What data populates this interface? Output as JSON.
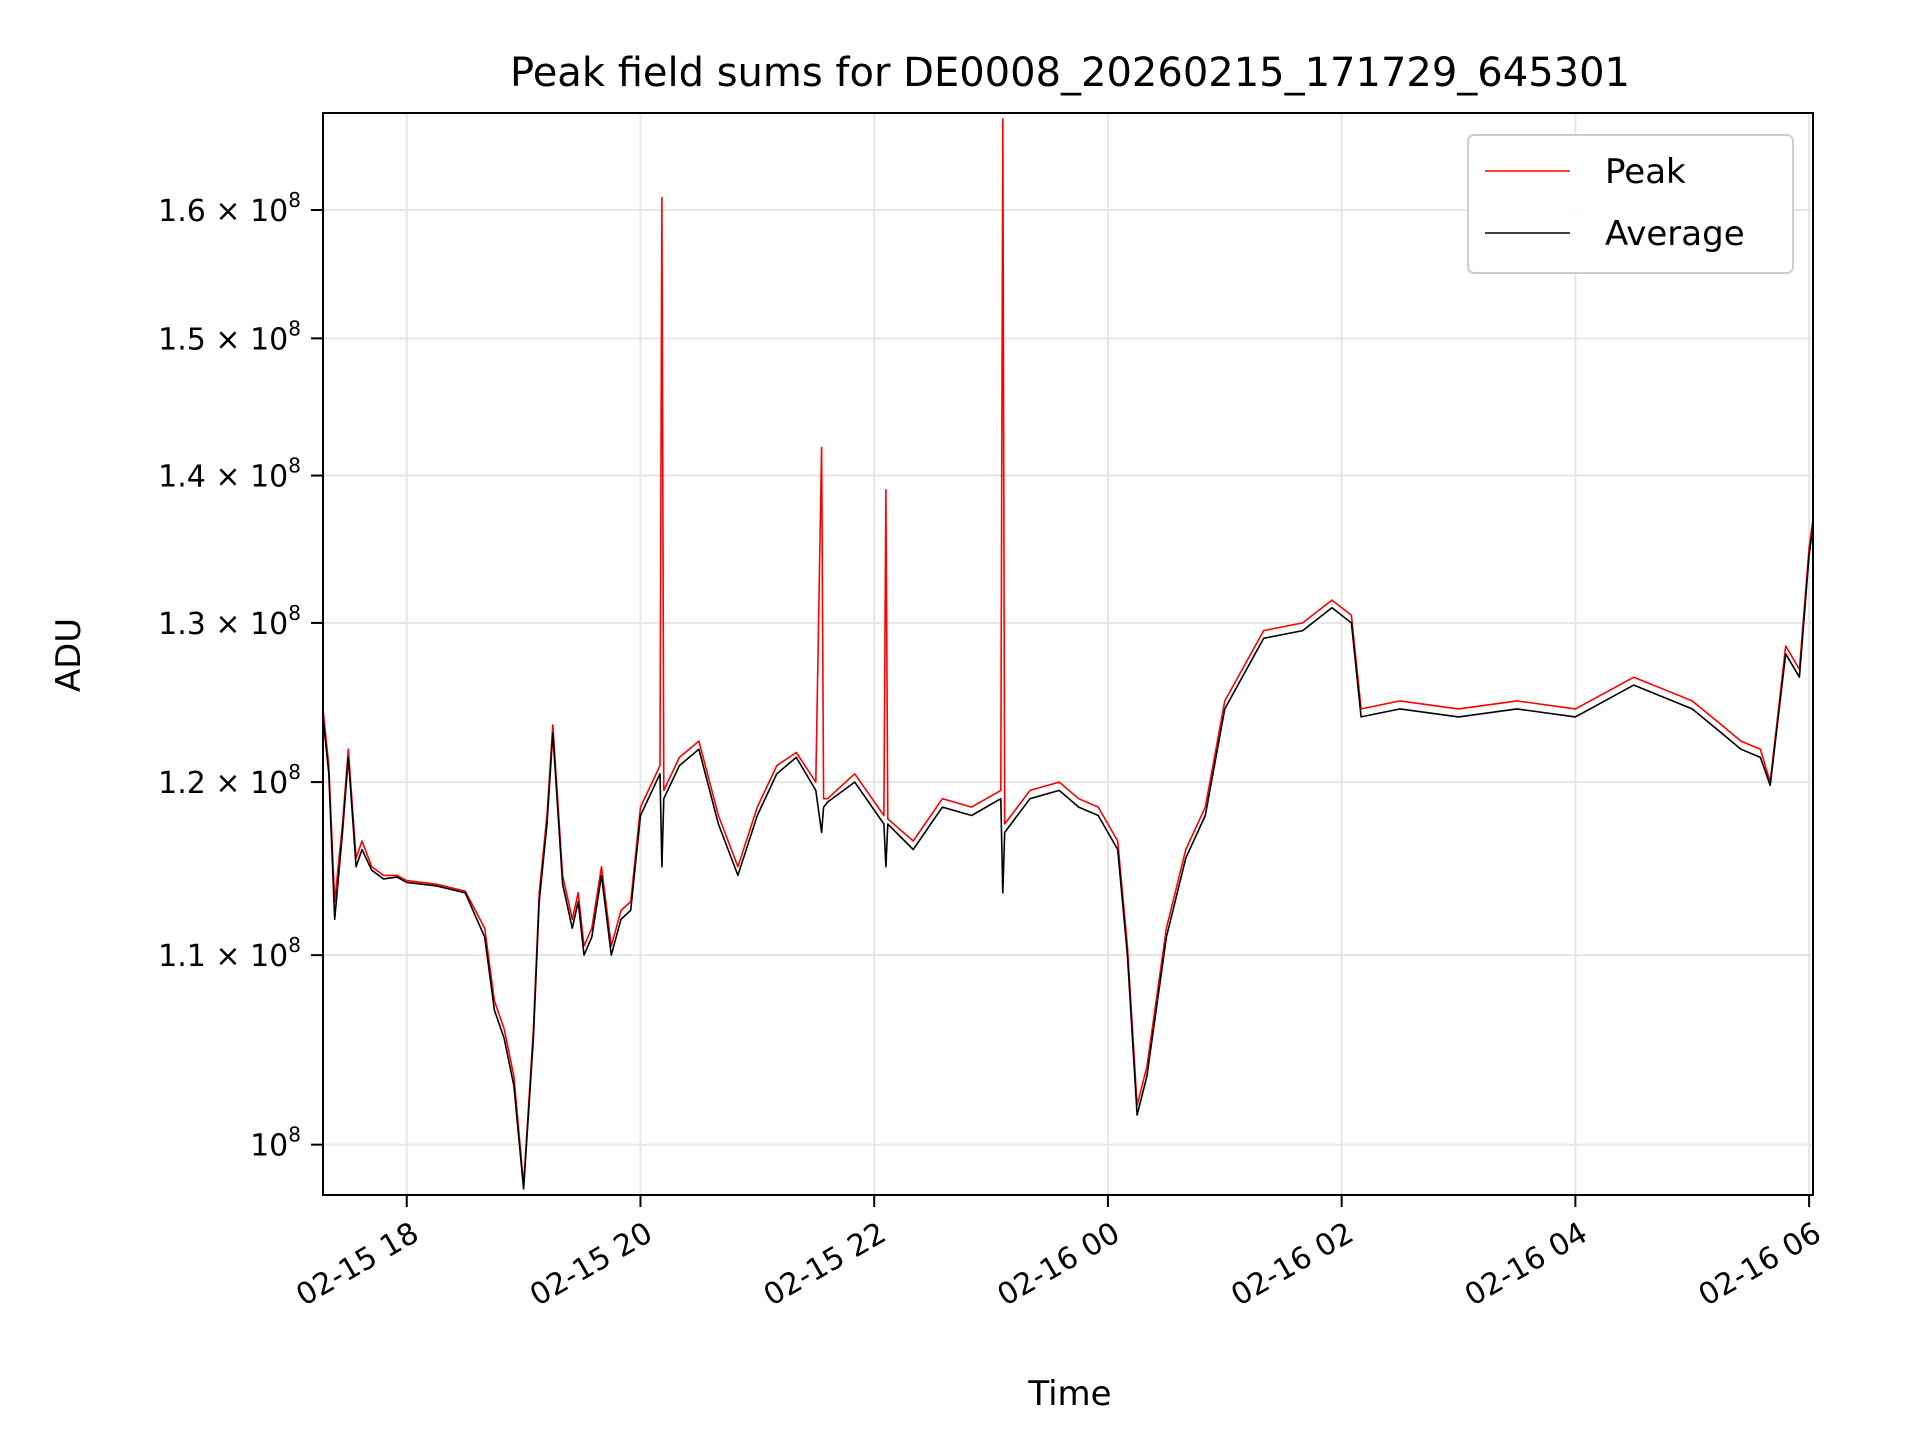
{
  "chart_data": {
    "type": "line",
    "title": "Peak field sums for DE0008_20260215_171729_645301",
    "xlabel": "Time",
    "ylabel": "ADU",
    "xlim": [
      "2026-02-15 17:17",
      "2026-02-16 06:02"
    ],
    "ylim": [
      97500000,
      168000000
    ],
    "yscale": "log",
    "grid": true,
    "legend_position": "top-right",
    "x_ticks": [
      {
        "value": "2026-02-15 18:00",
        "label": "02-15 18"
      },
      {
        "value": "2026-02-15 20:00",
        "label": "02-15 20"
      },
      {
        "value": "2026-02-15 22:00",
        "label": "02-15 22"
      },
      {
        "value": "2026-02-16 00:00",
        "label": "02-16 00"
      },
      {
        "value": "2026-02-16 02:00",
        "label": "02-16 02"
      },
      {
        "value": "2026-02-16 04:00",
        "label": "02-16 04"
      },
      {
        "value": "2026-02-16 06:00",
        "label": "02-16 06"
      }
    ],
    "y_ticks": [
      {
        "value": 100000000,
        "label_base": "10",
        "label_mantissa": "",
        "label_exp": "8"
      },
      {
        "value": 110000000,
        "label_base": "10",
        "label_mantissa": "1.1 × ",
        "label_exp": "8"
      },
      {
        "value": 120000000,
        "label_base": "10",
        "label_mantissa": "1.2 × ",
        "label_exp": "8"
      },
      {
        "value": 130000000,
        "label_base": "10",
        "label_mantissa": "1.3 × ",
        "label_exp": "8"
      },
      {
        "value": 140000000,
        "label_base": "10",
        "label_mantissa": "1.4 × ",
        "label_exp": "8"
      },
      {
        "value": 150000000,
        "label_base": "10",
        "label_mantissa": "1.5 × ",
        "label_exp": "8"
      },
      {
        "value": 160000000,
        "label_base": "10",
        "label_mantissa": "1.6 × ",
        "label_exp": "8"
      }
    ],
    "series": [
      {
        "name": "Peak",
        "color": "#ff0000",
        "x": [
          "2026-02-15 17:17",
          "2026-02-15 17:20",
          "2026-02-15 17:23",
          "2026-02-15 17:27",
          "2026-02-15 17:30",
          "2026-02-15 17:34",
          "2026-02-15 17:37",
          "2026-02-15 17:42",
          "2026-02-15 17:48",
          "2026-02-15 17:55",
          "2026-02-15 18:00",
          "2026-02-15 18:15",
          "2026-02-15 18:30",
          "2026-02-15 18:40",
          "2026-02-15 18:45",
          "2026-02-15 18:50",
          "2026-02-15 18:55",
          "2026-02-15 19:00",
          "2026-02-15 19:05",
          "2026-02-15 19:08",
          "2026-02-15 19:12",
          "2026-02-15 19:15",
          "2026-02-15 19:20",
          "2026-02-15 19:25",
          "2026-02-15 19:28",
          "2026-02-15 19:31",
          "2026-02-15 19:35",
          "2026-02-15 19:40",
          "2026-02-15 19:45",
          "2026-02-15 19:50",
          "2026-02-15 19:55",
          "2026-02-15 20:00",
          "2026-02-15 20:10",
          "2026-02-15 20:11",
          "2026-02-15 20:12",
          "2026-02-15 20:20",
          "2026-02-15 20:30",
          "2026-02-15 20:40",
          "2026-02-15 20:50",
          "2026-02-15 21:00",
          "2026-02-15 21:10",
          "2026-02-15 21:20",
          "2026-02-15 21:30",
          "2026-02-15 21:33",
          "2026-02-15 21:34",
          "2026-02-15 21:36",
          "2026-02-15 21:50",
          "2026-02-15 22:05",
          "2026-02-15 22:06",
          "2026-02-15 22:07",
          "2026-02-15 22:20",
          "2026-02-15 22:35",
          "2026-02-15 22:50",
          "2026-02-15 23:05",
          "2026-02-15 23:06",
          "2026-02-15 23:07",
          "2026-02-15 23:20",
          "2026-02-15 23:35",
          "2026-02-15 23:45",
          "2026-02-15 23:55",
          "2026-02-16 00:05",
          "2026-02-16 00:10",
          "2026-02-16 00:15",
          "2026-02-16 00:20",
          "2026-02-16 00:30",
          "2026-02-16 00:40",
          "2026-02-16 00:50",
          "2026-02-16 01:00",
          "2026-02-16 01:20",
          "2026-02-16 01:40",
          "2026-02-16 01:55",
          "2026-02-16 02:05",
          "2026-02-16 02:10",
          "2026-02-16 02:30",
          "2026-02-16 03:00",
          "2026-02-16 03:30",
          "2026-02-16 04:00",
          "2026-02-16 04:30",
          "2026-02-16 05:00",
          "2026-02-16 05:15",
          "2026-02-16 05:25",
          "2026-02-16 05:35",
          "2026-02-16 05:40",
          "2026-02-16 05:48",
          "2026-02-16 05:55",
          "2026-02-16 06:00",
          "2026-02-16 06:02"
        ],
        "values": [
          124500000,
          121000000,
          113000000,
          117500000,
          122000000,
          115500000,
          116500000,
          115000000,
          114500000,
          114500000,
          114200000,
          114000000,
          113600000,
          111500000,
          107500000,
          106000000,
          103500000,
          98000000,
          106000000,
          113500000,
          118000000,
          123500000,
          114500000,
          112000000,
          113500000,
          110500000,
          111500000,
          115000000,
          110500000,
          112500000,
          113000000,
          118500000,
          121000000,
          161000000,
          119500000,
          121500000,
          122500000,
          118000000,
          115000000,
          118500000,
          121000000,
          121800000,
          120000000,
          142000000,
          119000000,
          119000000,
          120500000,
          118000000,
          139000000,
          117800000,
          116500000,
          119000000,
          118500000,
          119500000,
          167500000,
          117500000,
          119500000,
          120000000,
          119000000,
          118500000,
          116500000,
          110500000,
          102000000,
          104000000,
          111500000,
          116000000,
          118500000,
          125000000,
          129500000,
          130000000,
          131500000,
          130500000,
          124500000,
          125000000,
          124500000,
          125000000,
          124500000,
          126500000,
          125000000,
          123500000,
          122500000,
          122000000,
          120000000,
          128500000,
          127000000,
          135000000,
          137000000
        ]
      },
      {
        "name": "Average",
        "color": "#000000",
        "x": [
          "2026-02-15 17:17",
          "2026-02-15 17:20",
          "2026-02-15 17:23",
          "2026-02-15 17:27",
          "2026-02-15 17:30",
          "2026-02-15 17:34",
          "2026-02-15 17:37",
          "2026-02-15 17:42",
          "2026-02-15 17:48",
          "2026-02-15 17:55",
          "2026-02-15 18:00",
          "2026-02-15 18:15",
          "2026-02-15 18:30",
          "2026-02-15 18:40",
          "2026-02-15 18:45",
          "2026-02-15 18:50",
          "2026-02-15 18:55",
          "2026-02-15 19:00",
          "2026-02-15 19:05",
          "2026-02-15 19:08",
          "2026-02-15 19:12",
          "2026-02-15 19:15",
          "2026-02-15 19:20",
          "2026-02-15 19:25",
          "2026-02-15 19:28",
          "2026-02-15 19:31",
          "2026-02-15 19:35",
          "2026-02-15 19:40",
          "2026-02-15 19:45",
          "2026-02-15 19:50",
          "2026-02-15 19:55",
          "2026-02-15 20:00",
          "2026-02-15 20:10",
          "2026-02-15 20:11",
          "2026-02-15 20:12",
          "2026-02-15 20:20",
          "2026-02-15 20:30",
          "2026-02-15 20:40",
          "2026-02-15 20:50",
          "2026-02-15 21:00",
          "2026-02-15 21:10",
          "2026-02-15 21:20",
          "2026-02-15 21:30",
          "2026-02-15 21:33",
          "2026-02-15 21:34",
          "2026-02-15 21:36",
          "2026-02-15 21:50",
          "2026-02-15 22:05",
          "2026-02-15 22:06",
          "2026-02-15 22:07",
          "2026-02-15 22:20",
          "2026-02-15 22:35",
          "2026-02-15 22:50",
          "2026-02-15 23:05",
          "2026-02-15 23:06",
          "2026-02-15 23:07",
          "2026-02-15 23:20",
          "2026-02-15 23:35",
          "2026-02-15 23:45",
          "2026-02-15 23:55",
          "2026-02-16 00:05",
          "2026-02-16 00:10",
          "2026-02-16 00:15",
          "2026-02-16 00:20",
          "2026-02-16 00:30",
          "2026-02-16 00:40",
          "2026-02-16 00:50",
          "2026-02-16 01:00",
          "2026-02-16 01:20",
          "2026-02-16 01:40",
          "2026-02-16 01:55",
          "2026-02-16 02:05",
          "2026-02-16 02:10",
          "2026-02-16 02:30",
          "2026-02-16 03:00",
          "2026-02-16 03:30",
          "2026-02-16 04:00",
          "2026-02-16 04:30",
          "2026-02-16 05:00",
          "2026-02-16 05:15",
          "2026-02-16 05:25",
          "2026-02-16 05:35",
          "2026-02-16 05:40",
          "2026-02-16 05:48",
          "2026-02-16 05:55",
          "2026-02-16 06:00",
          "2026-02-16 06:02"
        ],
        "values": [
          124000000,
          120500000,
          112000000,
          117000000,
          121500000,
          115000000,
          116000000,
          114800000,
          114300000,
          114400000,
          114100000,
          113900000,
          113500000,
          111000000,
          107000000,
          105500000,
          103000000,
          97800000,
          105500000,
          113000000,
          117500000,
          123000000,
          114000000,
          111500000,
          113000000,
          110000000,
          111000000,
          114500000,
          110000000,
          112000000,
          112500000,
          118000000,
          120500000,
          115000000,
          119000000,
          121000000,
          122000000,
          117500000,
          114500000,
          118000000,
          120500000,
          121500000,
          119500000,
          117000000,
          118500000,
          118800000,
          120000000,
          117500000,
          115000000,
          117500000,
          116000000,
          118500000,
          118000000,
          119000000,
          113500000,
          117000000,
          119000000,
          119500000,
          118500000,
          118000000,
          116000000,
          110000000,
          101500000,
          103500000,
          111000000,
          115500000,
          118000000,
          124500000,
          129000000,
          129500000,
          131000000,
          130000000,
          124000000,
          124500000,
          124000000,
          124500000,
          124000000,
          126000000,
          124500000,
          123000000,
          122000000,
          121500000,
          119800000,
          128000000,
          126500000,
          134500000,
          136500000
        ]
      }
    ]
  }
}
